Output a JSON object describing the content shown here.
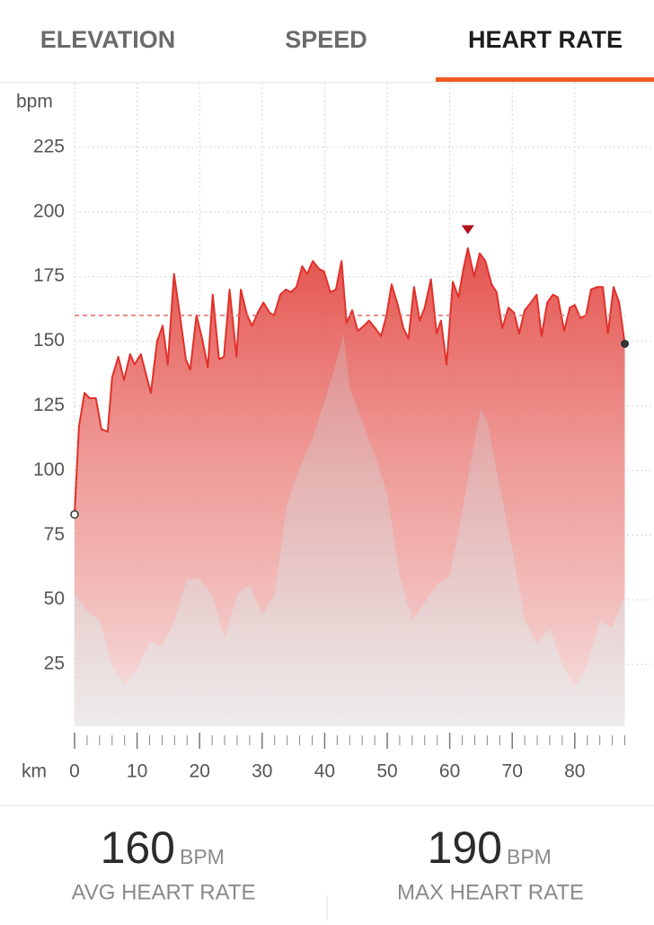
{
  "tabs": [
    "ELEVATION",
    "SPEED",
    "HEART RATE"
  ],
  "chart_data": {
    "type": "area",
    "y_label": "bpm",
    "x_label": "km",
    "x": [
      0,
      0.7,
      1.6,
      2.4,
      3.4,
      4.3,
      5.3,
      6,
      7,
      7.9,
      8.9,
      9.6,
      10.6,
      12.2,
      13.2,
      14.1,
      14.9,
      15.9,
      16.8,
      17.8,
      18.5,
      19.5,
      20.4,
      21.3,
      22.1,
      23.1,
      23.9,
      24.8,
      25.9,
      26.6,
      27.6,
      28.4,
      29.3,
      30.2,
      31.2,
      31.9,
      32.9,
      33.8,
      34.6,
      35.5,
      36.4,
      37.2,
      38.1,
      39.1,
      39.9,
      40.9,
      41.8,
      42.7,
      43.5,
      44.4,
      45.3,
      46.3,
      47.1,
      48.1,
      49,
      49.9,
      50.7,
      51.7,
      52.6,
      53.4,
      54.3,
      55.2,
      56,
      57,
      57.9,
      58.6,
      59.5,
      60.5,
      61.4,
      62.2,
      62.9,
      63.9,
      64.8,
      65.7,
      66.7,
      67.5,
      68.4,
      69.4,
      70.3,
      71.1,
      72,
      73,
      73.9,
      74.7,
      75.6,
      76.5,
      77.3,
      78.3,
      79.2,
      80,
      80.9,
      81.8,
      82.6,
      83.6,
      84.5,
      85.3,
      86.2,
      87.1,
      88
    ],
    "series": [
      {
        "color": "#e0302a",
        "values": [
          83,
          117,
          130,
          128,
          128,
          116,
          115,
          136,
          144,
          135,
          145,
          141,
          145,
          130,
          150,
          156,
          141,
          176,
          161,
          143,
          139,
          160,
          151,
          140,
          168,
          143,
          144,
          170,
          144,
          170,
          160,
          156,
          161,
          165,
          161,
          160,
          168,
          170,
          169,
          171,
          179,
          176,
          181,
          178,
          177,
          169,
          170,
          181,
          157,
          162,
          154,
          156,
          158,
          155,
          152,
          160,
          172,
          164,
          155,
          151,
          171,
          158,
          163,
          174,
          153,
          158,
          141,
          173,
          167,
          178,
          186,
          175,
          184,
          181,
          172,
          169,
          155,
          163,
          161,
          153,
          162,
          165,
          168,
          152,
          165,
          168,
          167,
          154,
          163,
          164,
          159,
          160,
          170,
          171,
          171,
          153,
          171,
          165,
          149
        ]
      }
    ],
    "elevation_profile": {
      "x": [
        0,
        2,
        4,
        6,
        8,
        10,
        12,
        14,
        16,
        18,
        20,
        22,
        24,
        26,
        28,
        30,
        32,
        34,
        36,
        38,
        40,
        42,
        43,
        44,
        46,
        48,
        50,
        52,
        54,
        56,
        58,
        60,
        62,
        64,
        65,
        66,
        68,
        70,
        72,
        74,
        76,
        78,
        80,
        82,
        84,
        86,
        88
      ],
      "values": [
        52,
        46,
        42,
        25,
        17,
        23,
        34,
        32,
        42,
        58,
        58,
        52,
        35,
        52,
        56,
        44,
        52,
        87,
        101,
        112,
        127,
        143,
        153,
        132,
        119,
        106,
        91,
        59,
        42,
        49,
        56,
        59,
        84,
        112,
        124,
        119,
        94,
        70,
        42,
        33,
        39,
        25,
        16,
        25,
        42,
        39,
        52
      ]
    },
    "ylim": [
      0,
      250
    ],
    "yticks": [
      25,
      50,
      75,
      100,
      125,
      150,
      175,
      200,
      225
    ],
    "xlim": [
      0,
      88
    ],
    "xticks": [
      0,
      10,
      20,
      30,
      40,
      50,
      60,
      70,
      80
    ],
    "x_minor_ticks": [
      2,
      4,
      6,
      8,
      12,
      14,
      16,
      18,
      22,
      24,
      26,
      28,
      32,
      34,
      36,
      38,
      42,
      44,
      46,
      48,
      52,
      54,
      56,
      58,
      62,
      64,
      66,
      68,
      72,
      74,
      76,
      78,
      82,
      84,
      86,
      88
    ],
    "grid": true
  },
  "stats": [
    {
      "value": 160,
      "unit": "BPM",
      "label": "AVG HEART RATE"
    },
    {
      "value": 190,
      "unit": "BPM",
      "label": "MAX HEART RATE"
    }
  ]
}
